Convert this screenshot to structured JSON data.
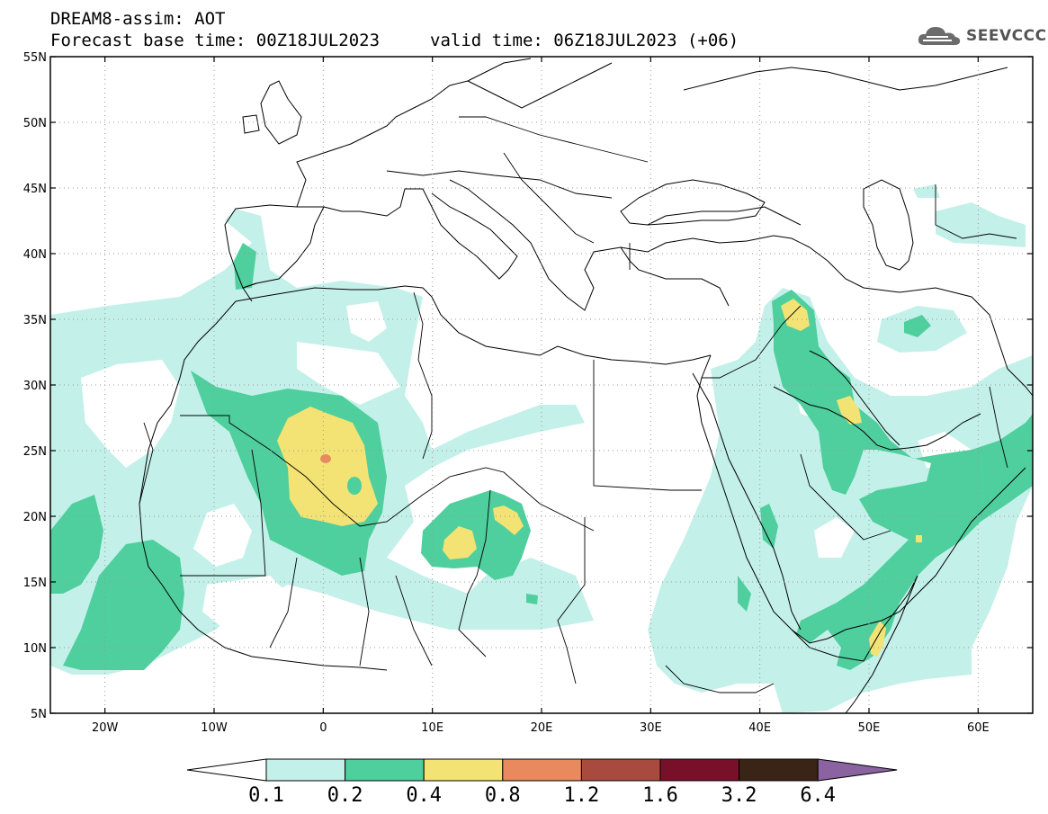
{
  "header": {
    "title": "DREAM8-assim: AOT",
    "base_time": "Forecast base time: 00Z18JUL2023",
    "valid_time": "valid time: 06Z18JUL2023 (+06)"
  },
  "logo": {
    "text": "SEEVCCC",
    "icon": "cloud-icon"
  },
  "map": {
    "lat_labels": [
      "55N",
      "50N",
      "45N",
      "40N",
      "35N",
      "30N",
      "25N",
      "20N",
      "15N",
      "10N",
      "5N"
    ],
    "lon_labels": [
      "20W",
      "10W",
      "0",
      "10E",
      "20E",
      "30E",
      "40E",
      "50E",
      "60E"
    ],
    "lon_range": [
      -25,
      65
    ],
    "lat_range": [
      5,
      55
    ]
  },
  "colorbar": {
    "levels": [
      "0.1",
      "0.2",
      "0.4",
      "0.8",
      "1.2",
      "1.6",
      "3.2",
      "6.4"
    ],
    "colors": [
      "#c4f0ea",
      "#4fcf9d",
      "#f3e374",
      "#e88a5d",
      "#a84a3e",
      "#78102a",
      "#3a2416",
      "#8a63a0"
    ],
    "under_color": "#ffffff"
  }
}
